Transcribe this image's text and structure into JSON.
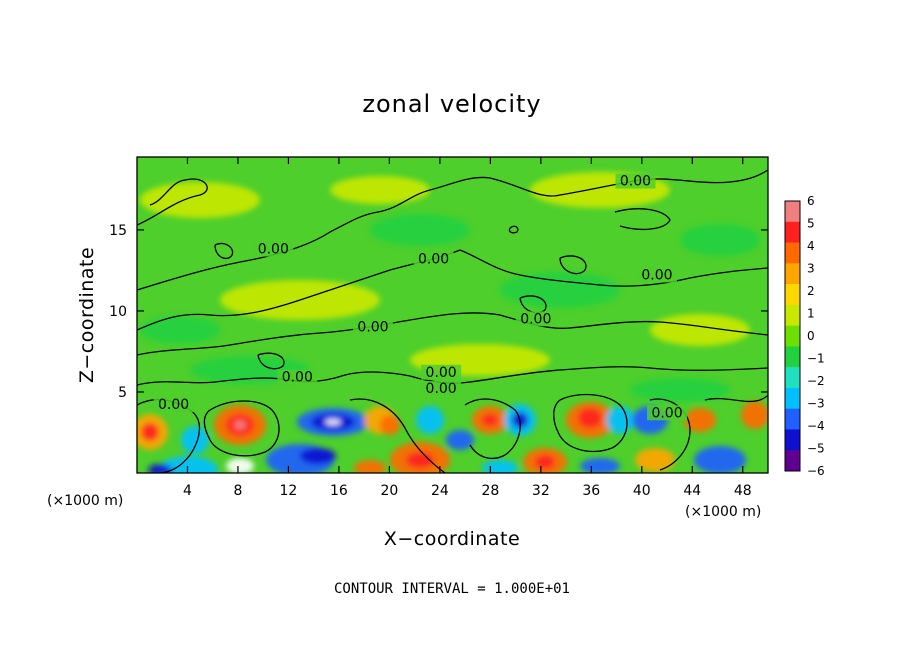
{
  "chart_data": {
    "type": "heatmap",
    "title": "zonal velocity",
    "xlabel": "X−coordinate",
    "ylabel": "Z−coordinate",
    "x_unit_left": "(×1000 m)",
    "x_unit_right": "(×1000 m)",
    "xlim": [
      0,
      50
    ],
    "ylim": [
      0,
      19.5
    ],
    "xticks": [
      4,
      8,
      12,
      16,
      20,
      24,
      28,
      32,
      36,
      40,
      44,
      48
    ],
    "xtick_labels": [
      "4",
      "8",
      "12",
      "16",
      "20",
      "24",
      "28",
      "32",
      "36",
      "40",
      "44",
      "48"
    ],
    "yticks": [
      5,
      10,
      15
    ],
    "ytick_labels": [
      "5",
      "10",
      "15"
    ],
    "colorbar": {
      "levels": [
        6,
        5,
        4,
        3,
        2,
        1,
        0,
        -1,
        -2,
        -3,
        -4,
        -5,
        -6
      ],
      "labels": [
        "6",
        "5",
        "4",
        "3",
        "2",
        "1",
        "0",
        "−1",
        "−2",
        "−3",
        "−4",
        "−5",
        "−6"
      ],
      "colors": [
        "#f08080",
        "#ff2020",
        "#ff6a00",
        "#ffa500",
        "#ffd700",
        "#c8e800",
        "#6ee000",
        "#22d040",
        "#20e0c0",
        "#00c0ff",
        "#2060ff",
        "#1010d0",
        "#600090"
      ]
    },
    "contour_label_text": "0.00",
    "contour_labels": [
      {
        "x": 39.5,
        "z": 17.8
      },
      {
        "x": 54.5,
        "z": 18.2
      },
      {
        "x": 10.8,
        "z": 13.6
      },
      {
        "x": 23.5,
        "z": 13.0
      },
      {
        "x": 41.2,
        "z": 12.0
      },
      {
        "x": 18.7,
        "z": 8.8
      },
      {
        "x": 31.6,
        "z": 9.3
      },
      {
        "x": 12.7,
        "z": 5.7
      },
      {
        "x": 24.1,
        "z": 6.0
      },
      {
        "x": 24.1,
        "z": 5.0
      },
      {
        "x": 2.9,
        "z": 4.0
      },
      {
        "x": 42.0,
        "z": 3.5
      }
    ],
    "grid": false,
    "legend": "colorbar-right"
  },
  "footer_note": "CONTOUR INTERVAL = 1.000E+01"
}
